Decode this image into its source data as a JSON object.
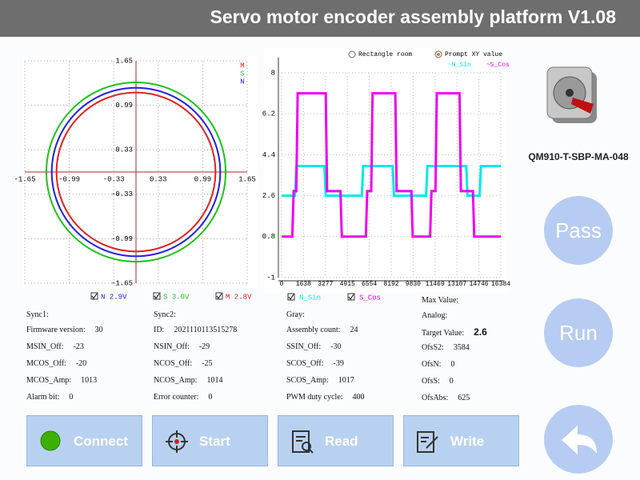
{
  "header": {
    "title": "Servo motor encoder assembly platform V1.08"
  },
  "xy_plot": {
    "type": "circle",
    "xlim": [
      -1.65,
      1.65
    ],
    "ylim": [
      -1.65,
      1.65
    ],
    "xticks": [
      -1.65,
      -0.99,
      -0.33,
      0.33,
      0.99,
      1.65
    ],
    "yticks": [
      1.65,
      0.99,
      0.33,
      -0.33,
      -0.99,
      -1.65
    ],
    "grid": true,
    "series": [
      {
        "name": "M",
        "color": "#e02020",
        "radius": 1.18
      },
      {
        "name": "S",
        "color": "#20c020",
        "radius": 1.33
      },
      {
        "name": "N",
        "color": "#2020e0",
        "radius": 1.25
      }
    ],
    "checkboxes": [
      "N 2.9V",
      "S 3.0V",
      "M 2.8V"
    ]
  },
  "wave_plot": {
    "type": "line",
    "options": [
      "Rectangle room",
      "Prompt XY value"
    ],
    "legend": [
      "~N_Sin",
      "~S_Cos"
    ],
    "checkboxes": [
      "N_Sin",
      "S_Cos"
    ],
    "xlim": [
      0,
      16384
    ],
    "ylim": [
      -1,
      8
    ],
    "xticks": [
      0,
      1638,
      3277,
      4915,
      6554,
      8192,
      9830,
      11469,
      13107,
      14746,
      16384
    ],
    "yticks": [
      -1,
      0.8,
      2.6,
      4.4,
      6.2,
      8
    ],
    "grid": true,
    "series": [
      {
        "name": "N_Sin",
        "color": "#00e8e8",
        "x": [
          0,
          1000,
          1100,
          3200,
          3300,
          6000,
          6100,
          8300,
          8400,
          10800,
          10900,
          13800,
          13900,
          14800,
          14900,
          16384
        ],
        "values": [
          2.6,
          2.6,
          3.9,
          3.9,
          2.6,
          2.6,
          3.9,
          3.9,
          2.6,
          2.6,
          3.9,
          3.9,
          2.6,
          2.6,
          3.9,
          3.9
        ]
      },
      {
        "name": "S_Cos",
        "color": "#ee00ee",
        "x": [
          0,
          800,
          900,
          1100,
          1200,
          3300,
          3400,
          4400,
          4500,
          6300,
          6400,
          6700,
          6800,
          8500,
          8600,
          9700,
          9800,
          11100,
          11200,
          11500,
          11600,
          13300,
          13400,
          14300,
          14400,
          16384
        ],
        "values": [
          0.8,
          0.8,
          2.8,
          2.8,
          7.1,
          7.1,
          2.8,
          2.8,
          0.8,
          0.8,
          2.8,
          2.8,
          7.1,
          7.1,
          2.8,
          2.8,
          0.8,
          0.8,
          2.8,
          2.8,
          7.1,
          7.1,
          2.8,
          2.8,
          0.8,
          0.8
        ]
      }
    ]
  },
  "info": {
    "columns": [
      {
        "rows": [
          {
            "label": "Sync1:"
          },
          {
            "label": "Firmware version:",
            "value": "30"
          },
          {
            "label": "MSIN_Off:",
            "value": "-23"
          },
          {
            "label": "MCOS_Off:",
            "value": "-20"
          },
          {
            "label": "MCOS_Amp:",
            "value": "1013"
          },
          {
            "label": "Alarm bit:",
            "value": "0"
          }
        ]
      },
      {
        "rows": [
          {
            "label": "Sync2:"
          },
          {
            "label": "ID:",
            "value": "2021110113515278"
          },
          {
            "label": "NSIN_Off:",
            "value": "-29"
          },
          {
            "label": "NCOS_Off:",
            "value": "-25"
          },
          {
            "label": "NCOS_Amp:",
            "value": "1014"
          },
          {
            "label": "Error counter:",
            "value": "0"
          }
        ]
      },
      {
        "rows": [
          {
            "label": "Gray:"
          },
          {
            "label": "Assembly count:",
            "value": "24"
          },
          {
            "label": "SSIN_Off:",
            "value": "-30"
          },
          {
            "label": "SCOS_Off:",
            "value": "-39"
          },
          {
            "label": "SCOS_Amp:",
            "value": "1017"
          },
          {
            "label": "PWM duty cycle:",
            "value": "400"
          }
        ]
      },
      {
        "rows": [
          {
            "label": "Max Value:"
          },
          {
            "label": "Analog:"
          },
          {
            "label": "Target Value:",
            "value": "2.6"
          },
          {
            "label": "OfsS2:",
            "value": "3584"
          },
          {
            "label": "OfsN:",
            "value": "0"
          },
          {
            "label": "OfsS:",
            "value": "0"
          },
          {
            "label": "OfsAbs:",
            "value": "625"
          }
        ]
      }
    ]
  },
  "product": {
    "name": "QM910-T-SBP-MA-048"
  },
  "buttons": {
    "connect": "Connect",
    "start": "Start",
    "read": "Read",
    "write": "Write",
    "pass": "Pass",
    "run": "Run"
  }
}
